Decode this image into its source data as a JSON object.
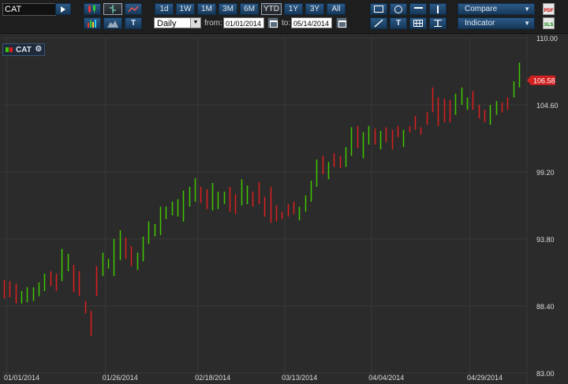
{
  "symbol": "CAT",
  "range_buttons": [
    "1d",
    "1W",
    "1M",
    "3M",
    "6M",
    "YTD",
    "1Y",
    "3Y",
    "All"
  ],
  "selected_range": "YTD",
  "period": "Daily",
  "from_label": "from:",
  "from_date": "01/01/2014",
  "to_label": "to:",
  "to_date": "05/14/2014",
  "compare_label": "Compare",
  "indicator_label": "Indicator",
  "text_tool_label": "T",
  "pdf_label": "PDF",
  "xls_label": "XLS",
  "legend_name": "CAT",
  "colors": {
    "up": "#40c800",
    "down": "#dd1e1e",
    "grid": "#3a3a3a",
    "price_tag": "#d02020"
  },
  "chart_data": {
    "type": "ohlc",
    "title": "",
    "xlabel": "",
    "ylabel": "",
    "ylim": [
      83.0,
      110.0
    ],
    "y_ticks": [
      "110.00",
      "104.60",
      "99.20",
      "93.80",
      "88.40",
      "83.00"
    ],
    "x_ticks": [
      "01/01/2014",
      "01/26/2014",
      "02/18/2014",
      "03/13/2014",
      "04/04/2014",
      "04/29/2014"
    ],
    "x_tick_index": [
      0,
      17,
      33,
      48,
      63,
      80
    ],
    "last_price": "106.58",
    "bars": [
      {
        "d": "down",
        "h": 90.5,
        "l": 89.0
      },
      {
        "d": "down",
        "h": 90.4,
        "l": 89.1
      },
      {
        "d": "down",
        "h": 90.2,
        "l": 88.6
      },
      {
        "d": "up",
        "h": 89.6,
        "l": 88.6
      },
      {
        "d": "up",
        "h": 89.9,
        "l": 88.7
      },
      {
        "d": "up",
        "h": 89.9,
        "l": 88.8
      },
      {
        "d": "up",
        "h": 90.3,
        "l": 89.2
      },
      {
        "d": "up",
        "h": 91.0,
        "l": 89.6
      },
      {
        "d": "down",
        "h": 91.2,
        "l": 90.0
      },
      {
        "d": "down",
        "h": 91.0,
        "l": 89.6
      },
      {
        "d": "up",
        "h": 93.0,
        "l": 90.4
      },
      {
        "d": "up",
        "h": 92.6,
        "l": 91.2
      },
      {
        "d": "down",
        "h": 91.7,
        "l": 89.5
      },
      {
        "d": "down",
        "h": 91.2,
        "l": 89.2
      },
      {
        "d": "down",
        "h": 88.8,
        "l": 87.8
      },
      {
        "d": "down",
        "h": 88.0,
        "l": 86.0
      },
      {
        "d": "down",
        "h": 91.6,
        "l": 89.2
      },
      {
        "d": "up",
        "h": 92.7,
        "l": 90.8
      },
      {
        "d": "up",
        "h": 92.2,
        "l": 91.4
      },
      {
        "d": "up",
        "h": 93.8,
        "l": 90.8
      },
      {
        "d": "up",
        "h": 94.5,
        "l": 92.1
      },
      {
        "d": "down",
        "h": 93.9,
        "l": 92.2
      },
      {
        "d": "down",
        "h": 93.2,
        "l": 91.6
      },
      {
        "d": "up",
        "h": 92.7,
        "l": 91.3
      },
      {
        "d": "up",
        "h": 94.0,
        "l": 92.0
      },
      {
        "d": "up",
        "h": 95.2,
        "l": 93.4
      },
      {
        "d": "up",
        "h": 95.0,
        "l": 94.0
      },
      {
        "d": "up",
        "h": 96.4,
        "l": 94.1
      },
      {
        "d": "up",
        "h": 96.4,
        "l": 95.4
      },
      {
        "d": "up",
        "h": 96.8,
        "l": 95.7
      },
      {
        "d": "up",
        "h": 97.0,
        "l": 95.6
      },
      {
        "d": "up",
        "h": 97.7,
        "l": 95.2
      },
      {
        "d": "up",
        "h": 98.0,
        "l": 96.4
      },
      {
        "d": "up",
        "h": 98.7,
        "l": 96.8
      },
      {
        "d": "down",
        "h": 98.0,
        "l": 96.7
      },
      {
        "d": "down",
        "h": 97.8,
        "l": 96.2
      },
      {
        "d": "up",
        "h": 98.3,
        "l": 96.1
      },
      {
        "d": "up",
        "h": 97.6,
        "l": 96.2
      },
      {
        "d": "up",
        "h": 97.6,
        "l": 96.6
      },
      {
        "d": "down",
        "h": 98.0,
        "l": 96.0
      },
      {
        "d": "down",
        "h": 97.4,
        "l": 95.8
      },
      {
        "d": "up",
        "h": 98.6,
        "l": 96.5
      },
      {
        "d": "up",
        "h": 98.1,
        "l": 96.6
      },
      {
        "d": "down",
        "h": 97.6,
        "l": 96.4
      },
      {
        "d": "down",
        "h": 98.4,
        "l": 96.6
      },
      {
        "d": "down",
        "h": 97.2,
        "l": 95.6
      },
      {
        "d": "down",
        "h": 98.0,
        "l": 95.1
      },
      {
        "d": "down",
        "h": 96.5,
        "l": 95.2
      },
      {
        "d": "down",
        "h": 96.0,
        "l": 95.4
      },
      {
        "d": "down",
        "h": 96.6,
        "l": 95.6
      },
      {
        "d": "down",
        "h": 96.8,
        "l": 95.8
      },
      {
        "d": "up",
        "h": 96.4,
        "l": 95.3
      },
      {
        "d": "up",
        "h": 97.3,
        "l": 96.0
      },
      {
        "d": "up",
        "h": 98.5,
        "l": 96.8
      },
      {
        "d": "up",
        "h": 100.2,
        "l": 98.0
      },
      {
        "d": "down",
        "h": 100.5,
        "l": 99.0
      },
      {
        "d": "up",
        "h": 100.0,
        "l": 98.6
      },
      {
        "d": "down",
        "h": 100.7,
        "l": 99.6
      },
      {
        "d": "down",
        "h": 100.5,
        "l": 99.5
      },
      {
        "d": "up",
        "h": 101.2,
        "l": 99.6
      },
      {
        "d": "up",
        "h": 102.8,
        "l": 100.5
      },
      {
        "d": "down",
        "h": 102.9,
        "l": 101.1
      },
      {
        "d": "up",
        "h": 102.4,
        "l": 100.3
      },
      {
        "d": "up",
        "h": 102.9,
        "l": 101.4
      },
      {
        "d": "down",
        "h": 102.7,
        "l": 101.4
      },
      {
        "d": "up",
        "h": 102.5,
        "l": 101.0
      },
      {
        "d": "down",
        "h": 102.8,
        "l": 101.6
      },
      {
        "d": "down",
        "h": 102.6,
        "l": 101.0
      },
      {
        "d": "down",
        "h": 102.9,
        "l": 102.0
      },
      {
        "d": "up",
        "h": 102.6,
        "l": 101.2
      },
      {
        "d": "down",
        "h": 102.9,
        "l": 102.4
      },
      {
        "d": "down",
        "h": 103.7,
        "l": 102.6
      },
      {
        "d": "down",
        "h": 102.8,
        "l": 102.2
      },
      {
        "d": "down",
        "h": 104.0,
        "l": 103.0
      },
      {
        "d": "down",
        "h": 106.0,
        "l": 104.0
      },
      {
        "d": "down",
        "h": 105.2,
        "l": 102.9
      },
      {
        "d": "down",
        "h": 105.1,
        "l": 103.2
      },
      {
        "d": "down",
        "h": 105.0,
        "l": 103.2
      },
      {
        "d": "up",
        "h": 105.5,
        "l": 103.8
      },
      {
        "d": "up",
        "h": 106.0,
        "l": 104.6
      },
      {
        "d": "up",
        "h": 105.2,
        "l": 104.2
      },
      {
        "d": "down",
        "h": 105.7,
        "l": 104.2
      },
      {
        "d": "down",
        "h": 104.6,
        "l": 103.5
      },
      {
        "d": "down",
        "h": 104.2,
        "l": 103.2
      },
      {
        "d": "up",
        "h": 104.6,
        "l": 103.0
      },
      {
        "d": "up",
        "h": 104.9,
        "l": 103.8
      },
      {
        "d": "down",
        "h": 104.8,
        "l": 104.0
      },
      {
        "d": "down",
        "h": 105.2,
        "l": 104.2
      },
      {
        "d": "up",
        "h": 106.5,
        "l": 105.2
      },
      {
        "d": "up",
        "h": 108.0,
        "l": 106.0
      }
    ]
  }
}
